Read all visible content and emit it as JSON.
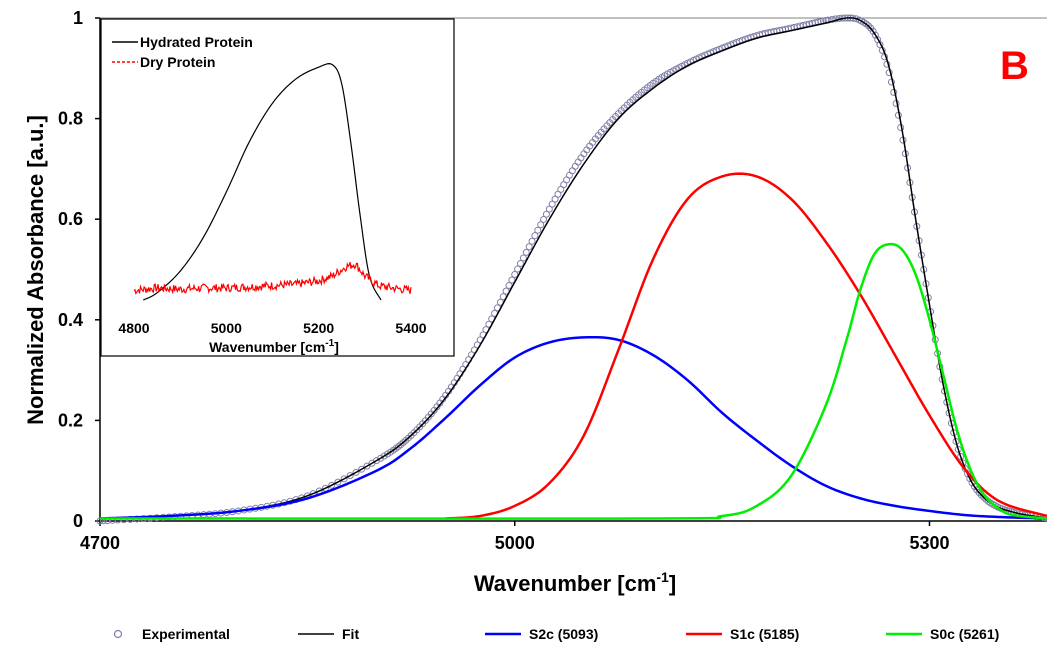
{
  "chart_data": [
    {
      "type": "line",
      "panel_label": "B",
      "xlabel": "Wavenumber [cm-1]",
      "xlabel_main": "Wavenumber [cm",
      "xlabel_sup": "-1",
      "xlabel_end": "]",
      "ylabel": "Normalized Absorbance [a.u.]",
      "xlim": [
        4700,
        5385
      ],
      "ylim": [
        0,
        1
      ],
      "xticks": [
        4700,
        5000,
        5300
      ],
      "xtick_labels": [
        "4700",
        "5000",
        "5300"
      ],
      "yticks": [
        0,
        0.2,
        0.4,
        0.6,
        0.8,
        1
      ],
      "ytick_labels": [
        "0",
        "0.2",
        "0.4",
        "0.6",
        "0.8",
        "1"
      ],
      "grid": false,
      "legend_position": "bottom",
      "series": [
        {
          "name": "Experimental",
          "kind": "markers",
          "color": "#8080a8",
          "x": [
            4700,
            4750,
            4800,
            4850,
            4900,
            4925,
            4950,
            4975,
            5000,
            5025,
            5050,
            5075,
            5100,
            5125,
            5150,
            5175,
            5200,
            5225,
            5240,
            5250,
            5260,
            5270,
            5280,
            5290,
            5300,
            5310,
            5320,
            5330,
            5340,
            5350,
            5360,
            5370,
            5385
          ],
          "y": [
            0.0,
            0.008,
            0.02,
            0.05,
            0.12,
            0.17,
            0.25,
            0.36,
            0.49,
            0.62,
            0.73,
            0.81,
            0.87,
            0.91,
            0.94,
            0.965,
            0.98,
            0.995,
            1.0,
            0.995,
            0.97,
            0.9,
            0.77,
            0.6,
            0.43,
            0.27,
            0.15,
            0.08,
            0.045,
            0.027,
            0.018,
            0.012,
            0.006
          ]
        },
        {
          "name": "Fit",
          "kind": "line",
          "color": "#000000",
          "x": [
            4700,
            4750,
            4800,
            4850,
            4900,
            4925,
            4950,
            4975,
            5000,
            5025,
            5050,
            5075,
            5100,
            5125,
            5150,
            5175,
            5200,
            5225,
            5240,
            5250,
            5260,
            5270,
            5280,
            5290,
            5300,
            5310,
            5320,
            5330,
            5340,
            5350,
            5360,
            5370,
            5385
          ],
          "y": [
            0.005,
            0.01,
            0.02,
            0.05,
            0.12,
            0.17,
            0.245,
            0.35,
            0.475,
            0.6,
            0.71,
            0.8,
            0.86,
            0.905,
            0.935,
            0.96,
            0.975,
            0.99,
            1.0,
            0.995,
            0.97,
            0.91,
            0.78,
            0.6,
            0.43,
            0.27,
            0.15,
            0.08,
            0.045,
            0.027,
            0.018,
            0.012,
            0.006
          ]
        },
        {
          "name": "S2c (5093)",
          "kind": "line",
          "color": "#0000ff",
          "x": [
            4700,
            4750,
            4800,
            4850,
            4900,
            4925,
            4950,
            4975,
            5000,
            5025,
            5050,
            5075,
            5100,
            5125,
            5150,
            5175,
            5200,
            5225,
            5250,
            5275,
            5300,
            5325,
            5350,
            5385
          ],
          "y": [
            0.005,
            0.01,
            0.02,
            0.045,
            0.1,
            0.145,
            0.205,
            0.27,
            0.325,
            0.355,
            0.365,
            0.36,
            0.33,
            0.28,
            0.215,
            0.16,
            0.11,
            0.07,
            0.045,
            0.03,
            0.02,
            0.012,
            0.008,
            0.005
          ]
        },
        {
          "name": "S1c (5185)",
          "kind": "line",
          "color": "#ff0000",
          "x": [
            4950,
            4975,
            5000,
            5025,
            5050,
            5075,
            5100,
            5125,
            5150,
            5175,
            5200,
            5225,
            5250,
            5275,
            5300,
            5325,
            5350,
            5385
          ],
          "y": [
            0.005,
            0.01,
            0.03,
            0.075,
            0.17,
            0.34,
            0.52,
            0.64,
            0.685,
            0.685,
            0.64,
            0.555,
            0.45,
            0.33,
            0.21,
            0.105,
            0.04,
            0.01
          ]
        },
        {
          "name": "S0c (5261)",
          "kind": "line",
          "color": "#00ee00",
          "x": [
            4700,
            5100,
            5150,
            5175,
            5200,
            5225,
            5240,
            5250,
            5260,
            5270,
            5280,
            5290,
            5300,
            5310,
            5320,
            5330,
            5340,
            5350,
            5360,
            5385
          ],
          "y": [
            0.005,
            0.005,
            0.01,
            0.03,
            0.09,
            0.23,
            0.36,
            0.46,
            0.53,
            0.55,
            0.54,
            0.49,
            0.4,
            0.29,
            0.18,
            0.1,
            0.05,
            0.025,
            0.012,
            0.005
          ]
        }
      ]
    },
    {
      "type": "line",
      "role": "inset",
      "xlabel": "Wavenumber [cm-1]",
      "xlabel_main": "Wavenumber [cm",
      "xlabel_sup": "-1",
      "xlabel_end": "]",
      "xlim": [
        4800,
        5400
      ],
      "ylim": [
        0,
        1
      ],
      "xticks": [
        4800,
        5000,
        5200,
        5400
      ],
      "xtick_labels": [
        "4800",
        "5000",
        "5200",
        "5400"
      ],
      "legend_position": "top-left",
      "series": [
        {
          "name": "Hydrated Protein",
          "kind": "line",
          "color": "#000000",
          "x": [
            4820,
            4850,
            4900,
            4950,
            5000,
            5050,
            5100,
            5150,
            5200,
            5230,
            5250,
            5270,
            5290,
            5310,
            5335
          ],
          "y": [
            0.0,
            0.03,
            0.12,
            0.26,
            0.45,
            0.66,
            0.82,
            0.92,
            0.97,
            0.98,
            0.9,
            0.65,
            0.35,
            0.1,
            0.0
          ]
        },
        {
          "name": "Dry Protein",
          "kind": "noisy-line",
          "color": "#ff0000",
          "x": [
            4800,
            4850,
            4900,
            4950,
            5000,
            5050,
            5100,
            5150,
            5200,
            5230,
            5260,
            5280,
            5300,
            5330,
            5360,
            5400
          ],
          "y": [
            0.04,
            0.05,
            0.045,
            0.05,
            0.05,
            0.055,
            0.06,
            0.065,
            0.08,
            0.1,
            0.14,
            0.15,
            0.1,
            0.06,
            0.05,
            0.04
          ]
        }
      ]
    }
  ],
  "legend": [
    {
      "label": "Experimental",
      "symbol": "circle",
      "color": "#8080a8"
    },
    {
      "label": "Fit",
      "symbol": "line",
      "color": "#000000"
    },
    {
      "label": "S2c (5093)",
      "symbol": "line",
      "color": "#0000ff"
    },
    {
      "label": "S1c (5185)",
      "symbol": "line",
      "color": "#ff0000"
    },
    {
      "label": "S0c (5261)",
      "symbol": "line",
      "color": "#00ee00"
    }
  ],
  "colors": {
    "panel_label": "#ff0000",
    "axis": "#000000"
  }
}
